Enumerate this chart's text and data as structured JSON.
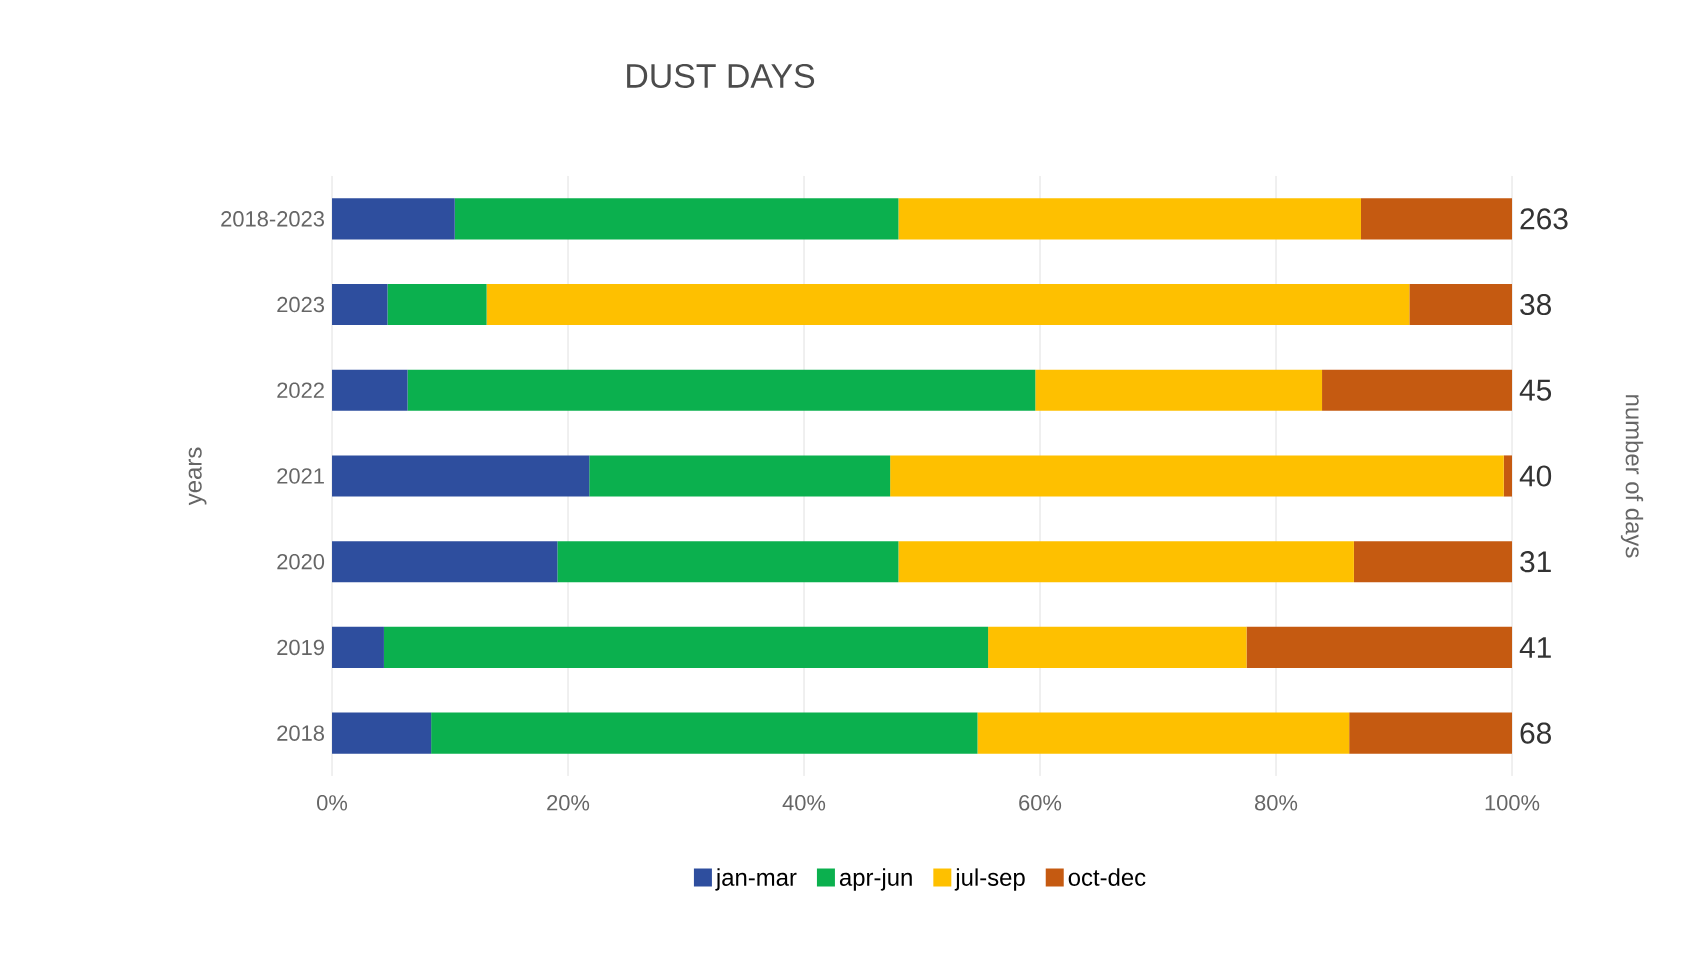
{
  "chart_data": {
    "type": "bar",
    "orientation": "horizontal",
    "stacked": true,
    "title": "DUST DAYS",
    "ylabel": "years",
    "y2label": "number of days",
    "categories": [
      "2018-2023",
      "2023",
      "2022",
      "2021",
      "2020",
      "2019",
      "2018"
    ],
    "series": [
      {
        "name": "jan-mar",
        "color": "#2e4e9e",
        "values": [
          10.4,
          4.7,
          6.4,
          21.8,
          19.1,
          4.4,
          8.4
        ]
      },
      {
        "name": "apr-jun",
        "color": "#0bb04e",
        "values": [
          37.6,
          8.4,
          53.2,
          25.5,
          28.9,
          51.2,
          46.3
        ]
      },
      {
        "name": "jul-sep",
        "color": "#fec000",
        "values": [
          39.2,
          78.2,
          24.3,
          52.0,
          38.6,
          21.9,
          31.5
        ]
      },
      {
        "name": "oct-dec",
        "color": "#c55a11",
        "values": [
          12.8,
          8.7,
          16.1,
          0.7,
          13.4,
          22.5,
          13.8
        ]
      }
    ],
    "annotations": [
      "263",
      "38",
      "45",
      "40",
      "31",
      "41",
      "68"
    ],
    "xlim": [
      0,
      100
    ],
    "xticks": [
      {
        "value": 0,
        "label": "0%"
      },
      {
        "value": 20,
        "label": "20%"
      },
      {
        "value": 40,
        "label": "40%"
      },
      {
        "value": 60,
        "label": "60%"
      },
      {
        "value": 80,
        "label": "80%"
      },
      {
        "value": 100,
        "label": "100%"
      }
    ],
    "grid": "x",
    "legend": "bottom"
  }
}
